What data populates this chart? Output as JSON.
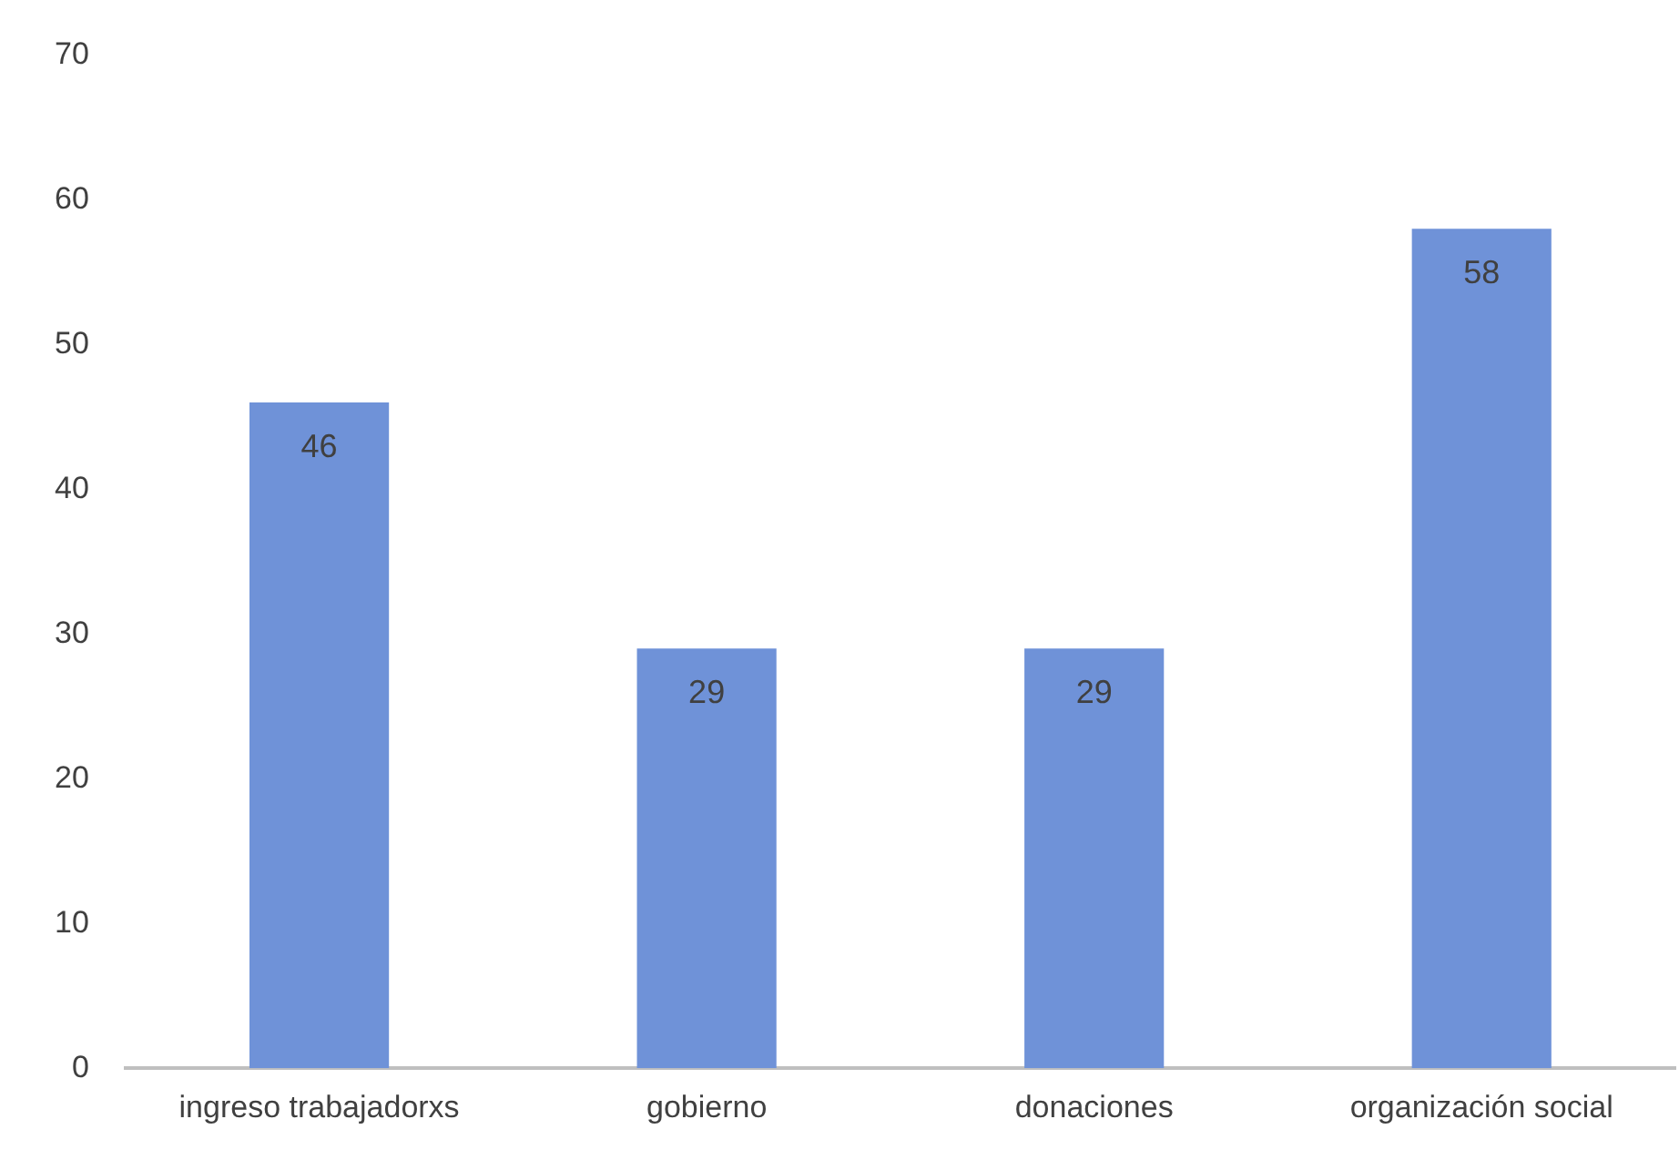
{
  "chart_data": {
    "type": "bar",
    "categories": [
      "ingreso trabajadorxs",
      "gobierno",
      "donaciones",
      "organización social"
    ],
    "values": [
      46,
      29,
      29,
      58
    ],
    "color": "#6f92d8",
    "ylim": [
      0,
      70
    ],
    "yticks": [
      0,
      10,
      20,
      30,
      40,
      50,
      60,
      70
    ],
    "grid": false,
    "legend": false,
    "data_labels": true
  }
}
